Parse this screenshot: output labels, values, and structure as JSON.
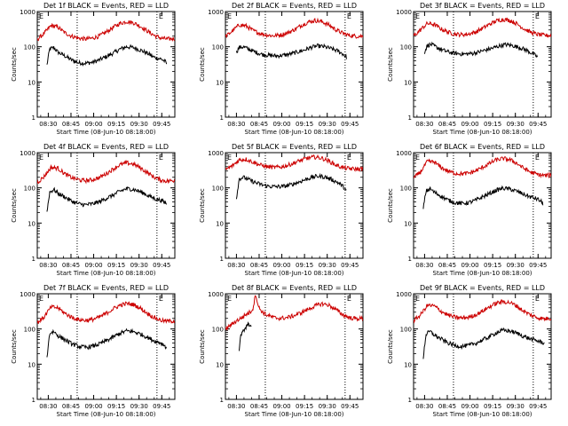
{
  "chart_data": [
    {
      "type": "line",
      "title": "Det 1f BLACK = Events, RED = LLD",
      "ylabel": "Counts/sec",
      "xlabel": "Start Time (08-Jun-10 08:18:00)",
      "yscale": "log",
      "ylim": [
        1,
        1000
      ],
      "y_ticks": [
        "1",
        "10",
        "100",
        "1000"
      ],
      "x_ticks": [
        "08:30",
        "08:45",
        "09:00",
        "09:15",
        "09:30",
        "09:45"
      ],
      "marker_labels": [
        "E",
        "E"
      ],
      "series": [
        {
          "name": "Events",
          "color": "#000000",
          "x": [
            0.07,
            0.09,
            0.12,
            0.15,
            0.2,
            0.25,
            0.3,
            0.35,
            0.4,
            0.45,
            0.5,
            0.55,
            0.6,
            0.65,
            0.7,
            0.75,
            0.8,
            0.85,
            0.9,
            0.93,
            0.94
          ],
          "y": [
            30,
            85,
            95,
            70,
            55,
            42,
            35,
            34,
            36,
            42,
            52,
            65,
            85,
            100,
            95,
            80,
            65,
            50,
            45,
            38,
            33
          ]
        },
        {
          "name": "LLD",
          "color": "#cc0000",
          "x": [
            0.0,
            0.05,
            0.1,
            0.15,
            0.2,
            0.25,
            0.3,
            0.35,
            0.4,
            0.45,
            0.5,
            0.55,
            0.6,
            0.65,
            0.7,
            0.75,
            0.8,
            0.85,
            0.9,
            0.95,
            1.0
          ],
          "y": [
            160,
            240,
            400,
            360,
            250,
            200,
            175,
            165,
            175,
            200,
            260,
            350,
            460,
            520,
            480,
            380,
            280,
            210,
            175,
            165,
            170
          ]
        }
      ]
    },
    {
      "type": "line",
      "title": "Det 2f BLACK = Events, RED = LLD",
      "ylabel": "Counts/sec",
      "xlabel": "Start Time (08-Jun-10 08:18:00)",
      "yscale": "log",
      "ylim": [
        1,
        1000
      ],
      "y_ticks": [
        "1",
        "10",
        "100",
        "1000"
      ],
      "x_ticks": [
        "08:30",
        "08:45",
        "09:00",
        "09:15",
        "09:30",
        "09:45"
      ],
      "marker_labels": [
        "E",
        "E"
      ],
      "series": [
        {
          "name": "Events",
          "color": "#000000",
          "x": [
            0.08,
            0.1,
            0.13,
            0.17,
            0.22,
            0.27,
            0.32,
            0.37,
            0.42,
            0.47,
            0.52,
            0.57,
            0.62,
            0.67,
            0.72,
            0.77,
            0.82,
            0.86,
            0.88
          ],
          "y": [
            70,
            95,
            100,
            85,
            70,
            60,
            57,
            55,
            57,
            62,
            70,
            80,
            95,
            105,
            100,
            88,
            75,
            60,
            50
          ]
        },
        {
          "name": "LLD",
          "color": "#cc0000",
          "x": [
            0.0,
            0.05,
            0.1,
            0.15,
            0.2,
            0.25,
            0.3,
            0.35,
            0.4,
            0.45,
            0.5,
            0.55,
            0.6,
            0.65,
            0.7,
            0.75,
            0.8,
            0.85,
            0.9,
            0.95,
            1.0
          ],
          "y": [
            190,
            280,
            420,
            390,
            290,
            240,
            215,
            205,
            215,
            245,
            305,
            400,
            500,
            560,
            520,
            420,
            310,
            245,
            210,
            200,
            200
          ]
        }
      ]
    },
    {
      "type": "line",
      "title": "Det 3f BLACK = Events, RED = LLD",
      "ylabel": "Counts/sec",
      "xlabel": "Start Time (08-Jun-10 08:18:00)",
      "yscale": "log",
      "ylim": [
        1,
        1000
      ],
      "y_ticks": [
        "1",
        "10",
        "100",
        "1000"
      ],
      "x_ticks": [
        "08:30",
        "08:45",
        "09:00",
        "09:15",
        "09:30",
        "09:45"
      ],
      "marker_labels": [
        "E",
        "E"
      ],
      "series": [
        {
          "name": "Events",
          "color": "#000000",
          "x": [
            0.08,
            0.1,
            0.13,
            0.17,
            0.22,
            0.27,
            0.32,
            0.37,
            0.42,
            0.47,
            0.52,
            0.57,
            0.62,
            0.67,
            0.72,
            0.77,
            0.82,
            0.86,
            0.9
          ],
          "y": [
            70,
            110,
            115,
            95,
            78,
            68,
            64,
            62,
            64,
            70,
            80,
            90,
            105,
            115,
            108,
            95,
            80,
            65,
            52
          ]
        },
        {
          "name": "LLD",
          "color": "#cc0000",
          "x": [
            0.0,
            0.05,
            0.1,
            0.15,
            0.2,
            0.25,
            0.3,
            0.35,
            0.4,
            0.45,
            0.5,
            0.55,
            0.6,
            0.65,
            0.7,
            0.75,
            0.8,
            0.85,
            0.9,
            0.95,
            1.0
          ],
          "y": [
            200,
            300,
            460,
            430,
            320,
            260,
            230,
            220,
            230,
            260,
            330,
            430,
            540,
            600,
            560,
            450,
            330,
            260,
            225,
            210,
            210
          ]
        }
      ]
    },
    {
      "type": "line",
      "title": "Det 4f BLACK = Events, RED = LLD",
      "ylabel": "Counts/sec",
      "xlabel": "Start Time (08-Jun-10 08:18:00)",
      "yscale": "log",
      "ylim": [
        1,
        1000
      ],
      "y_ticks": [
        "1",
        "10",
        "100",
        "1000"
      ],
      "x_ticks": [
        "08:30",
        "08:45",
        "09:00",
        "09:15",
        "09:30",
        "09:45"
      ],
      "marker_labels": [
        "E",
        "E"
      ],
      "series": [
        {
          "name": "Events",
          "color": "#000000",
          "x": [
            0.07,
            0.09,
            0.12,
            0.15,
            0.2,
            0.25,
            0.3,
            0.35,
            0.4,
            0.45,
            0.5,
            0.55,
            0.6,
            0.65,
            0.7,
            0.75,
            0.8,
            0.85,
            0.9,
            0.93,
            0.94
          ],
          "y": [
            20,
            75,
            90,
            70,
            55,
            42,
            35,
            33,
            35,
            40,
            50,
            62,
            80,
            95,
            90,
            78,
            62,
            50,
            44,
            38,
            35
          ]
        },
        {
          "name": "LLD",
          "color": "#cc0000",
          "x": [
            0.0,
            0.05,
            0.1,
            0.15,
            0.2,
            0.25,
            0.3,
            0.35,
            0.4,
            0.45,
            0.5,
            0.55,
            0.6,
            0.65,
            0.7,
            0.75,
            0.8,
            0.85,
            0.9,
            0.95,
            1.0
          ],
          "y": [
            140,
            210,
            380,
            360,
            250,
            195,
            170,
            160,
            170,
            195,
            250,
            340,
            450,
            510,
            470,
            370,
            270,
            200,
            165,
            155,
            165
          ]
        }
      ]
    },
    {
      "type": "line",
      "title": "Det 5f BLACK = Events, RED = LLD",
      "ylabel": "Counts/sec",
      "xlabel": "Start Time (08-Jun-10 08:18:00)",
      "yscale": "log",
      "ylim": [
        1,
        1000
      ],
      "y_ticks": [
        "1",
        "10",
        "100",
        "1000"
      ],
      "x_ticks": [
        "08:30",
        "08:45",
        "09:00",
        "09:15",
        "09:30",
        "09:45"
      ],
      "marker_labels": [
        "E",
        "E"
      ],
      "series": [
        {
          "name": "Events",
          "color": "#000000",
          "x": [
            0.08,
            0.1,
            0.13,
            0.17,
            0.22,
            0.27,
            0.32,
            0.37,
            0.42,
            0.47,
            0.52,
            0.57,
            0.62,
            0.67,
            0.72,
            0.77,
            0.82,
            0.86,
            0.88
          ],
          "y": [
            50,
            180,
            200,
            170,
            140,
            120,
            110,
            108,
            110,
            120,
            140,
            165,
            195,
            215,
            205,
            175,
            140,
            105,
            80
          ]
        },
        {
          "name": "LLD",
          "color": "#cc0000",
          "x": [
            0.0,
            0.05,
            0.1,
            0.15,
            0.2,
            0.25,
            0.3,
            0.35,
            0.4,
            0.45,
            0.5,
            0.55,
            0.6,
            0.65,
            0.7,
            0.75,
            0.8,
            0.85,
            0.9,
            0.95,
            1.0
          ],
          "y": [
            330,
            420,
            620,
            650,
            540,
            450,
            400,
            380,
            390,
            430,
            510,
            610,
            700,
            750,
            700,
            580,
            450,
            380,
            350,
            340,
            345
          ]
        }
      ]
    },
    {
      "type": "line",
      "title": "Det 6f BLACK = Events, RED = LLD",
      "ylabel": "Counts/sec",
      "xlabel": "Start Time (08-Jun-10 08:18:00)",
      "yscale": "log",
      "ylim": [
        1,
        1000
      ],
      "y_ticks": [
        "1",
        "10",
        "100",
        "1000"
      ],
      "x_ticks": [
        "08:30",
        "08:45",
        "09:00",
        "09:15",
        "09:30",
        "09:45"
      ],
      "marker_labels": [
        "E",
        "E"
      ],
      "series": [
        {
          "name": "Events",
          "color": "#000000",
          "x": [
            0.07,
            0.09,
            0.12,
            0.15,
            0.2,
            0.25,
            0.3,
            0.35,
            0.4,
            0.45,
            0.5,
            0.55,
            0.6,
            0.65,
            0.7,
            0.75,
            0.8,
            0.85,
            0.9,
            0.93,
            0.94
          ],
          "y": [
            25,
            80,
            95,
            75,
            58,
            45,
            38,
            36,
            38,
            44,
            55,
            68,
            85,
            98,
            92,
            80,
            66,
            55,
            48,
            40,
            36
          ]
        },
        {
          "name": "LLD",
          "color": "#cc0000",
          "x": [
            0.0,
            0.05,
            0.1,
            0.15,
            0.2,
            0.25,
            0.3,
            0.35,
            0.4,
            0.45,
            0.5,
            0.55,
            0.6,
            0.65,
            0.7,
            0.75,
            0.8,
            0.85,
            0.9,
            0.95,
            1.0
          ],
          "y": [
            190,
            280,
            560,
            540,
            380,
            300,
            260,
            250,
            260,
            300,
            380,
            490,
            620,
            680,
            630,
            500,
            360,
            280,
            240,
            225,
            230
          ]
        }
      ]
    },
    {
      "type": "line",
      "title": "Det 7f BLACK = Events, RED = LLD",
      "ylabel": "Counts/sec",
      "xlabel": "Start Time (08-Jun-10 08:18:00)",
      "yscale": "log",
      "ylim": [
        1,
        1000
      ],
      "y_ticks": [
        "1",
        "10",
        "100",
        "1000"
      ],
      "x_ticks": [
        "08:30",
        "08:45",
        "09:00",
        "09:15",
        "09:30",
        "09:45"
      ],
      "marker_labels": [
        "E",
        "E"
      ],
      "series": [
        {
          "name": "Events",
          "color": "#000000",
          "x": [
            0.07,
            0.09,
            0.12,
            0.15,
            0.2,
            0.25,
            0.3,
            0.35,
            0.4,
            0.45,
            0.5,
            0.55,
            0.6,
            0.65,
            0.7,
            0.75,
            0.8,
            0.85,
            0.9,
            0.93,
            0.94
          ],
          "y": [
            15,
            75,
            85,
            65,
            50,
            38,
            32,
            30,
            32,
            37,
            46,
            58,
            75,
            88,
            84,
            72,
            58,
            46,
            40,
            33,
            28
          ]
        },
        {
          "name": "LLD",
          "color": "#cc0000",
          "x": [
            0.0,
            0.05,
            0.1,
            0.15,
            0.2,
            0.25,
            0.3,
            0.35,
            0.4,
            0.45,
            0.5,
            0.55,
            0.6,
            0.65,
            0.7,
            0.75,
            0.8,
            0.85,
            0.9,
            0.95,
            1.0
          ],
          "y": [
            150,
            220,
            420,
            400,
            280,
            215,
            185,
            175,
            185,
            215,
            275,
            370,
            470,
            530,
            490,
            390,
            280,
            210,
            175,
            165,
            170
          ]
        }
      ]
    },
    {
      "type": "line",
      "title": "Det 8f BLACK = Events, RED = LLD",
      "ylabel": "Counts/sec",
      "xlabel": "Start Time (08-Jun-10 08:18:00)",
      "yscale": "log",
      "ylim": [
        1,
        1000
      ],
      "y_ticks": [
        "1",
        "10",
        "100",
        "1000"
      ],
      "x_ticks": [
        "08:30",
        "08:45",
        "09:00",
        "09:15",
        "09:30",
        "09:45"
      ],
      "marker_labels": [
        "E",
        "E"
      ],
      "series": [
        {
          "name": "Events",
          "color": "#000000",
          "x": [
            0.1,
            0.11,
            0.12,
            0.13,
            0.14,
            0.15,
            0.16,
            0.17,
            0.18,
            0.19
          ],
          "y": [
            25,
            60,
            75,
            85,
            95,
            110,
            125,
            140,
            130,
            110
          ]
        },
        {
          "name": "LLD",
          "color": "#cc0000",
          "x": [
            0.0,
            0.04,
            0.08,
            0.12,
            0.15,
            0.18,
            0.2,
            0.22,
            0.24,
            0.27,
            0.3,
            0.35,
            0.4,
            0.45,
            0.5,
            0.55,
            0.6,
            0.65,
            0.7,
            0.75,
            0.8,
            0.85,
            0.9,
            0.95,
            1.0
          ],
          "y": [
            100,
            130,
            170,
            210,
            260,
            300,
            380,
            1000,
            420,
            300,
            250,
            210,
            200,
            210,
            240,
            290,
            360,
            450,
            520,
            480,
            360,
            260,
            210,
            195,
            200
          ]
        }
      ]
    },
    {
      "type": "line",
      "title": "Det 9f BLACK = Events, RED = LLD",
      "ylabel": "Counts/sec",
      "xlabel": "Start Time (08-Jun-10 08:18:00)",
      "yscale": "log",
      "ylim": [
        1,
        1000
      ],
      "y_ticks": [
        "1",
        "10",
        "100",
        "1000"
      ],
      "x_ticks": [
        "08:30",
        "08:45",
        "09:00",
        "09:15",
        "09:30",
        "09:45"
      ],
      "marker_labels": [
        "E",
        "E"
      ],
      "series": [
        {
          "name": "Events",
          "color": "#000000",
          "x": [
            0.07,
            0.09,
            0.12,
            0.15,
            0.2,
            0.25,
            0.3,
            0.35,
            0.4,
            0.45,
            0.5,
            0.55,
            0.6,
            0.65,
            0.7,
            0.75,
            0.8,
            0.85,
            0.9,
            0.93,
            0.95
          ],
          "y": [
            15,
            70,
            85,
            68,
            52,
            40,
            34,
            32,
            34,
            39,
            48,
            60,
            78,
            92,
            88,
            76,
            62,
            52,
            46,
            42,
            40
          ]
        },
        {
          "name": "LLD",
          "color": "#cc0000",
          "x": [
            0.0,
            0.05,
            0.1,
            0.15,
            0.2,
            0.25,
            0.3,
            0.35,
            0.4,
            0.45,
            0.5,
            0.55,
            0.6,
            0.65,
            0.7,
            0.75,
            0.8,
            0.85,
            0.9,
            0.95,
            1.0
          ],
          "y": [
            170,
            250,
            470,
            450,
            320,
            250,
            215,
            205,
            215,
            250,
            320,
            420,
            540,
            600,
            560,
            450,
            320,
            250,
            210,
            195,
            200
          ]
        }
      ]
    }
  ]
}
